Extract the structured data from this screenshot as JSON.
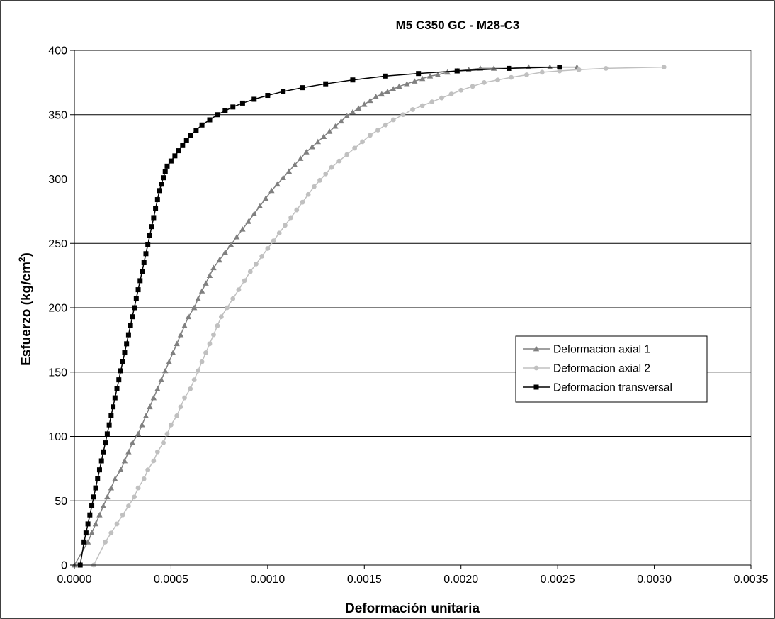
{
  "chart_data": {
    "type": "line",
    "title": "M5 C350 GC - M28-C3",
    "xlabel": "Deformación unitaria",
    "ylabel_prefix": "Esfuerzo (kg/cm",
    "ylabel_sup": "2",
    "ylabel_suffix": ")",
    "xlim": [
      0,
      0.0035
    ],
    "ylim": [
      0,
      400
    ],
    "xticks": [
      0,
      0.0005,
      0.001,
      0.0015,
      0.002,
      0.0025,
      0.003,
      0.0035
    ],
    "xtick_labels": [
      "0.0000",
      "0.0005",
      "0.0010",
      "0.0015",
      "0.0020",
      "0.0025",
      "0.0030",
      "0.0035"
    ],
    "yticks": [
      0,
      50,
      100,
      150,
      200,
      250,
      300,
      350,
      400
    ],
    "ytick_labels": [
      "0",
      "50",
      "100",
      "150",
      "200",
      "250",
      "300",
      "350",
      "400"
    ],
    "grid": "horizontal",
    "legend_position": "center-right",
    "series": [
      {
        "name": "Deformacion axial 1",
        "color": "#808080",
        "marker": "triangle",
        "x": [
          0,
          7e-05,
          9e-05,
          0.00011,
          0.00013,
          0.00015,
          0.00017,
          0.00019,
          0.00021,
          0.00024,
          0.00026,
          0.00028,
          0.0003,
          0.00033,
          0.00035,
          0.00037,
          0.00039,
          0.00041,
          0.00043,
          0.00045,
          0.00047,
          0.00049,
          0.00051,
          0.00053,
          0.00055,
          0.00057,
          0.00059,
          0.00062,
          0.00064,
          0.00066,
          0.00068,
          0.0007,
          0.00072,
          0.00075,
          0.00078,
          0.00081,
          0.00084,
          0.00087,
          0.0009,
          0.00093,
          0.00096,
          0.00099,
          0.00102,
          0.00105,
          0.00108,
          0.00111,
          0.00114,
          0.00117,
          0.0012,
          0.00123,
          0.00126,
          0.00129,
          0.00132,
          0.00135,
          0.00138,
          0.00141,
          0.00144,
          0.00147,
          0.0015,
          0.00153,
          0.00156,
          0.00159,
          0.00162,
          0.00165,
          0.00168,
          0.00172,
          0.00176,
          0.0018,
          0.00184,
          0.00188,
          0.00193,
          0.00198,
          0.00204,
          0.0021,
          0.00217,
          0.00225,
          0.00235,
          0.00246,
          0.0026
        ],
        "y": [
          0,
          18,
          25,
          32,
          39,
          46,
          53,
          60,
          67,
          74,
          81,
          88,
          95,
          102,
          109,
          116,
          123,
          130,
          137,
          144,
          151,
          158,
          165,
          172,
          179,
          186,
          193,
          200,
          207,
          213,
          219,
          225,
          231,
          237,
          243,
          249,
          255,
          261,
          267,
          273,
          279,
          285,
          291,
          296,
          301,
          306,
          311,
          316,
          321,
          325,
          329,
          333,
          337,
          341,
          345,
          349,
          352,
          355,
          358,
          361,
          364,
          366,
          368,
          370,
          372,
          374,
          376,
          378,
          380,
          381,
          383,
          384,
          385,
          386,
          386,
          386,
          387,
          387,
          387
        ]
      },
      {
        "name": "Deformacion axial 2",
        "color": "#c0c0c0",
        "marker": "circle",
        "x": [
          0.0001,
          0.00016,
          0.00019,
          0.00022,
          0.00025,
          0.00028,
          0.00031,
          0.00033,
          0.00036,
          0.00038,
          0.00041,
          0.00043,
          0.00046,
          0.00048,
          0.0005,
          0.00053,
          0.00055,
          0.00057,
          0.0006,
          0.00062,
          0.00064,
          0.00066,
          0.00068,
          0.0007,
          0.00072,
          0.00074,
          0.00076,
          0.00079,
          0.00082,
          0.00085,
          0.00088,
          0.00091,
          0.00094,
          0.00097,
          0.001,
          0.00103,
          0.00106,
          0.00109,
          0.00112,
          0.00115,
          0.00118,
          0.00121,
          0.00124,
          0.00127,
          0.0013,
          0.00133,
          0.00137,
          0.00141,
          0.00145,
          0.00149,
          0.00153,
          0.00157,
          0.00161,
          0.00165,
          0.0017,
          0.00175,
          0.0018,
          0.00185,
          0.0019,
          0.00195,
          0.002,
          0.00206,
          0.00212,
          0.00219,
          0.00226,
          0.00234,
          0.00242,
          0.00251,
          0.00261,
          0.00275,
          0.00305
        ],
        "y": [
          0,
          18,
          25,
          32,
          39,
          46,
          53,
          60,
          67,
          74,
          81,
          88,
          95,
          102,
          109,
          116,
          123,
          130,
          137,
          144,
          151,
          158,
          165,
          172,
          179,
          186,
          193,
          200,
          207,
          214,
          221,
          228,
          234,
          240,
          246,
          252,
          258,
          264,
          270,
          276,
          282,
          288,
          294,
          299,
          304,
          309,
          314,
          319,
          324,
          329,
          334,
          338,
          342,
          346,
          350,
          354,
          357,
          360,
          363,
          366,
          369,
          372,
          375,
          377,
          379,
          381,
          383,
          384,
          385,
          386,
          387
        ]
      },
      {
        "name": "Deformacion transversal",
        "color": "#000000",
        "marker": "square",
        "x": [
          3e-05,
          5e-05,
          6e-05,
          7e-05,
          8e-05,
          9e-05,
          0.0001,
          0.00011,
          0.00012,
          0.00013,
          0.00014,
          0.00015,
          0.00016,
          0.00017,
          0.00018,
          0.00019,
          0.0002,
          0.00021,
          0.00022,
          0.00023,
          0.00024,
          0.00025,
          0.00026,
          0.00027,
          0.00028,
          0.00029,
          0.0003,
          0.00031,
          0.00032,
          0.00033,
          0.00034,
          0.00035,
          0.00036,
          0.00037,
          0.00038,
          0.00039,
          0.0004,
          0.00041,
          0.00042,
          0.00043,
          0.00044,
          0.00045,
          0.00046,
          0.00047,
          0.00048,
          0.0005,
          0.00052,
          0.00054,
          0.00056,
          0.00058,
          0.0006,
          0.00063,
          0.00066,
          0.0007,
          0.00074,
          0.00078,
          0.00082,
          0.00087,
          0.00093,
          0.001,
          0.00108,
          0.00118,
          0.0013,
          0.00144,
          0.00161,
          0.00178,
          0.00198,
          0.00225,
          0.00251
        ],
        "y": [
          0,
          18,
          25,
          32,
          39,
          46,
          53,
          60,
          67,
          74,
          81,
          88,
          95,
          102,
          109,
          116,
          123,
          130,
          137,
          144,
          151,
          158,
          165,
          172,
          179,
          186,
          193,
          200,
          207,
          214,
          221,
          228,
          235,
          242,
          249,
          256,
          263,
          270,
          277,
          284,
          291,
          296,
          301,
          306,
          310,
          314,
          318,
          322,
          326,
          330,
          334,
          338,
          342,
          346,
          350,
          353,
          356,
          359,
          362,
          365,
          368,
          371,
          374,
          377,
          380,
          382,
          384,
          386,
          387
        ]
      }
    ]
  }
}
